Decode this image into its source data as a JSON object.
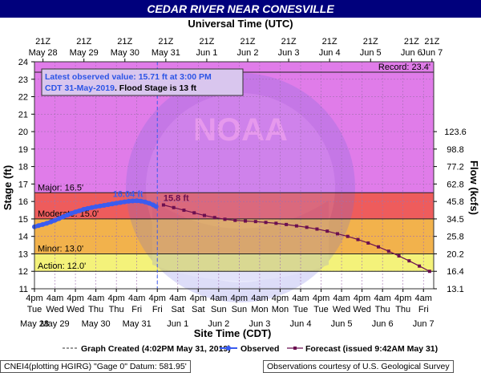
{
  "chart_data": {
    "type": "line",
    "title": "CEDAR RIVER NEAR CONESVILLE",
    "top_axis_title": "Universal Time (UTC)",
    "xlabel": "Site Time (CDT)",
    "ylabel": "Stage (ft)",
    "y2label": "Flow (kcfs)",
    "ylim": [
      11,
      24
    ],
    "yticks": [
      "11",
      "12",
      "13",
      "14",
      "15",
      "16",
      "17",
      "18",
      "19",
      "20",
      "21",
      "22",
      "23",
      "24"
    ],
    "y2ticks": [
      {
        "stage": 12,
        "label": "16.4"
      },
      {
        "stage": 13,
        "label": "20.2"
      },
      {
        "stage": 14,
        "label": "25.8"
      },
      {
        "stage": 15,
        "label": "34.5"
      },
      {
        "stage": 16,
        "label": "45.8"
      },
      {
        "stage": 17,
        "label": "62.8"
      },
      {
        "stage": 18,
        "label": "77.2"
      },
      {
        "stage": 19,
        "label": "98.8"
      },
      {
        "stage": 20,
        "label": "123.6"
      },
      {
        "stage": 11,
        "label": "13.1"
      }
    ],
    "x_domain": [
      "May 28 4pm",
      "Jun 7 4pm"
    ],
    "bottom_ticks": [
      {
        "t": 0,
        "time": "4pm",
        "day": "Tue",
        "date": "May 28"
      },
      {
        "t": 0.5,
        "time": "4am",
        "day": "Wed",
        "date": "May 29"
      },
      {
        "t": 1,
        "time": "4pm",
        "day": "Wed",
        "date": ""
      },
      {
        "t": 1.5,
        "time": "4am",
        "day": "Thu",
        "date": "May 30"
      },
      {
        "t": 2,
        "time": "4pm",
        "day": "Thu",
        "date": ""
      },
      {
        "t": 2.5,
        "time": "4am",
        "day": "Fri",
        "date": "May 31"
      },
      {
        "t": 3,
        "time": "4pm",
        "day": "Fri",
        "date": ""
      },
      {
        "t": 3.5,
        "time": "4am",
        "day": "Sat",
        "date": "Jun 1"
      },
      {
        "t": 4,
        "time": "4pm",
        "day": "Sat",
        "date": ""
      },
      {
        "t": 4.5,
        "time": "4am",
        "day": "Sun",
        "date": "Jun 2"
      },
      {
        "t": 5,
        "time": "4pm",
        "day": "Sun",
        "date": ""
      },
      {
        "t": 5.5,
        "time": "4am",
        "day": "Mon",
        "date": "Jun 3"
      },
      {
        "t": 6,
        "time": "4pm",
        "day": "Mon",
        "date": ""
      },
      {
        "t": 6.5,
        "time": "4am",
        "day": "Tue",
        "date": "Jun 4"
      },
      {
        "t": 7,
        "time": "4pm",
        "day": "Tue",
        "date": ""
      },
      {
        "t": 7.5,
        "time": "4am",
        "day": "Wed",
        "date": "Jun 5"
      },
      {
        "t": 8,
        "time": "4pm",
        "day": "Wed",
        "date": ""
      },
      {
        "t": 8.5,
        "time": "4am",
        "day": "Thu",
        "date": "Jun 6"
      },
      {
        "t": 9,
        "time": "4pm",
        "day": "Thu",
        "date": ""
      },
      {
        "t": 9.5,
        "time": "4am",
        "day": "Fri",
        "date": "Jun 7"
      }
    ],
    "top_ticks": [
      {
        "t": 0.208,
        "time": "21Z",
        "date": "May 28"
      },
      {
        "t": 1.208,
        "time": "21Z",
        "date": "May 29"
      },
      {
        "t": 2.208,
        "time": "21Z",
        "date": "May 30"
      },
      {
        "t": 3.208,
        "time": "21Z",
        "date": "May 31"
      },
      {
        "t": 4.208,
        "time": "21Z",
        "date": "Jun 1"
      },
      {
        "t": 5.208,
        "time": "21Z",
        "date": "Jun 2"
      },
      {
        "t": 6.208,
        "time": "21Z",
        "date": "Jun 3"
      },
      {
        "t": 7.208,
        "time": "21Z",
        "date": "Jun 4"
      },
      {
        "t": 8.208,
        "time": "21Z",
        "date": "Jun 5"
      },
      {
        "t": 9.208,
        "time": "21Z",
        "date": "Jun 6"
      },
      {
        "t": 9.708,
        "time": "21Z",
        "date": "Jun 7"
      }
    ],
    "bands": [
      {
        "name": "Record",
        "from": 16.5,
        "to": 24,
        "color": "#e07ce9"
      },
      {
        "name": "Major",
        "from": 15,
        "to": 16.5,
        "color": "#ee5c5c"
      },
      {
        "name": "Moderate",
        "from": 13,
        "to": 15,
        "color": "#f2b24c"
      },
      {
        "name": "Minor",
        "from": 12,
        "to": 13,
        "color": "#f4f27a"
      },
      {
        "name": "Action",
        "from": 11,
        "to": 12,
        "color": "#ffffff"
      }
    ],
    "thresholds": [
      {
        "label": "Record: 23.4'",
        "value": 23.4
      },
      {
        "label": "Major: 16.5'",
        "value": 16.5
      },
      {
        "label": "Moderate: 15.0'",
        "value": 15.0
      },
      {
        "label": "Minor: 13.0'",
        "value": 13.0
      },
      {
        "label": "Action: 12.0'",
        "value": 12.0
      }
    ],
    "series": [
      {
        "name": "Observed",
        "color": "#3a5cf0",
        "points": [
          [
            0.0,
            14.55
          ],
          [
            0.1,
            14.62
          ],
          [
            0.2,
            14.68
          ],
          [
            0.3,
            14.75
          ],
          [
            0.4,
            14.83
          ],
          [
            0.5,
            14.92
          ],
          [
            0.6,
            15.02
          ],
          [
            0.7,
            15.12
          ],
          [
            0.8,
            15.22
          ],
          [
            0.9,
            15.32
          ],
          [
            1.0,
            15.4
          ],
          [
            1.1,
            15.47
          ],
          [
            1.2,
            15.55
          ],
          [
            1.3,
            15.6
          ],
          [
            1.4,
            15.65
          ],
          [
            1.5,
            15.7
          ],
          [
            1.6,
            15.74
          ],
          [
            1.7,
            15.78
          ],
          [
            1.8,
            15.82
          ],
          [
            1.9,
            15.86
          ],
          [
            2.0,
            15.9
          ],
          [
            2.1,
            15.94
          ],
          [
            2.2,
            15.98
          ],
          [
            2.3,
            16.01
          ],
          [
            2.4,
            16.03
          ],
          [
            2.5,
            16.04
          ],
          [
            2.6,
            16.02
          ],
          [
            2.7,
            15.97
          ],
          [
            2.8,
            15.9
          ],
          [
            2.9,
            15.8
          ],
          [
            2.97,
            15.71
          ]
        ]
      },
      {
        "name": "Forecast",
        "color": "#6b0f50",
        "points": [
          [
            3.15,
            15.8
          ],
          [
            3.4,
            15.65
          ],
          [
            3.65,
            15.5
          ],
          [
            3.9,
            15.35
          ],
          [
            4.15,
            15.2
          ],
          [
            4.4,
            15.08
          ],
          [
            4.65,
            14.98
          ],
          [
            4.9,
            14.92
          ],
          [
            5.15,
            14.88
          ],
          [
            5.4,
            14.85
          ],
          [
            5.65,
            14.8
          ],
          [
            5.9,
            14.75
          ],
          [
            6.15,
            14.68
          ],
          [
            6.4,
            14.6
          ],
          [
            6.65,
            14.52
          ],
          [
            6.9,
            14.42
          ],
          [
            7.15,
            14.3
          ],
          [
            7.4,
            14.15
          ],
          [
            7.65,
            14.0
          ],
          [
            7.9,
            13.82
          ],
          [
            8.15,
            13.62
          ],
          [
            8.4,
            13.4
          ],
          [
            8.65,
            13.15
          ],
          [
            8.9,
            12.88
          ],
          [
            9.15,
            12.6
          ],
          [
            9.4,
            12.3
          ],
          [
            9.65,
            12.0
          ]
        ]
      }
    ],
    "annotations": [
      {
        "label": "16.04 ft",
        "t": 2.5,
        "value": 16.04,
        "color": "#3a5cf0"
      },
      {
        "label": "15.8 ft",
        "t": 3.15,
        "value": 15.8,
        "color": "#6b0f50"
      }
    ],
    "info_box": {
      "line1": "Latest observed value: 15.71 ft at 3:00 PM",
      "line2a": "CDT 31-May-2019",
      "line2b": ". Flood Stage is 13 ft"
    },
    "graph_created_t": 3.0
  },
  "legend": {
    "graph_created": "Graph Created (4:02PM May 31, 2019)",
    "observed": "Observed",
    "forecast": "Forecast (issued 9:42AM May 31)"
  },
  "footer": {
    "left": "CNEI4(plotting HGIRG) \"Gage 0\" Datum: 581.95'",
    "right": "Observations courtesy of U.S. Geological Survey"
  },
  "colors": {
    "title_bar": "#00007c",
    "border": "#333333"
  }
}
